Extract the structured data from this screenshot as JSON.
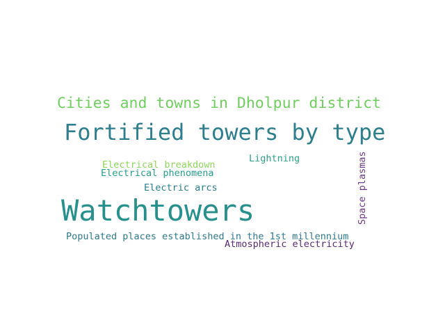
{
  "word_cloud": {
    "words": [
      {
        "key": "cities",
        "text": "Cities and towns in Dholpur district",
        "color": "#6fcf5d"
      },
      {
        "key": "fortified",
        "text": "Fortified towers by type",
        "color": "#2d7f8e"
      },
      {
        "key": "lightning",
        "text": "Lightning",
        "color": "#2da28a"
      },
      {
        "key": "breakdown",
        "text": "Electrical breakdown",
        "color": "#8fd65a"
      },
      {
        "key": "phenom",
        "text": "Electrical phenomena",
        "color": "#25a08a"
      },
      {
        "key": "arcs",
        "text": "Electric arcs",
        "color": "#2a7f8f"
      },
      {
        "key": "watch",
        "text": "Watchtowers",
        "color": "#25908c"
      },
      {
        "key": "populated",
        "text": "Populated places established in the 1st millennium",
        "color": "#2f7a8e"
      },
      {
        "key": "atmos",
        "text": "Atmospheric electricity",
        "color": "#5a2a7a"
      },
      {
        "key": "space",
        "text": "Space plasmas",
        "color": "#6a3a8a"
      }
    ]
  }
}
